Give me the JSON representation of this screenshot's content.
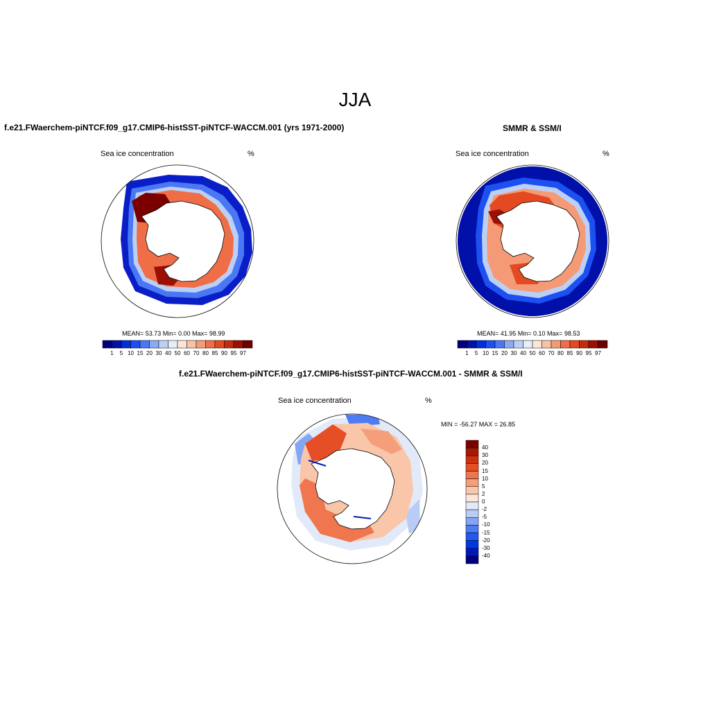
{
  "figure": {
    "season_title": "JJA"
  },
  "panels": {
    "model": {
      "title": "f.e21.FWaerchem-piNTCF.f09_g17.CMIP6-histSST-piNTCF-WACCM.001 (yrs 1971-2000)",
      "variable": "Sea ice concentration",
      "units": "%",
      "stats_text": "MEAN=  53.73  Min=   0.00  Max=  98.99"
    },
    "obs": {
      "title": "SMMR & SSM/I",
      "variable": "Sea ice concentration",
      "units": "%",
      "stats_text": "MEAN=  41.95  Min=   0.10  Max=  98.53"
    },
    "diff": {
      "title": "f.e21.FWaerchem-piNTCF.f09_g17.CMIP6-histSST-piNTCF-WACCM.001 - SMMR & SSM/I",
      "variable": "Sea ice concentration",
      "units": "%",
      "minmax_text": "MIN = -56.27 MAX =  26.85"
    }
  },
  "chart_data": [
    {
      "type": "heatmap",
      "projection": "south-polar stereographic",
      "title": "f.e21.FWaerchem-piNTCF.f09_g17.CMIP6-histSST-piNTCF-WACCM.001 (yrs 1971-2000)",
      "variable": "Sea ice concentration",
      "units": "%",
      "mean": 53.73,
      "min": 0.0,
      "max": 98.99,
      "colorbar_levels": [
        1,
        5,
        10,
        15,
        20,
        30,
        40,
        50,
        60,
        70,
        80,
        85,
        90,
        95,
        97
      ],
      "colorbar_orientation": "horizontal"
    },
    {
      "type": "heatmap",
      "projection": "south-polar stereographic",
      "title": "SMMR & SSM/I",
      "variable": "Sea ice concentration",
      "units": "%",
      "mean": 41.95,
      "min": 0.1,
      "max": 98.53,
      "colorbar_levels": [
        1,
        5,
        10,
        15,
        20,
        30,
        40,
        50,
        60,
        70,
        80,
        85,
        90,
        95,
        97
      ],
      "colorbar_orientation": "horizontal"
    },
    {
      "type": "heatmap",
      "projection": "south-polar stereographic",
      "title": "f.e21.FWaerchem-piNTCF.f09_g17.CMIP6-histSST-piNTCF-WACCM.001 - SMMR & SSM/I",
      "variable": "Sea ice concentration",
      "units": "%",
      "min": -56.27,
      "max": 26.85,
      "colorbar_levels": [
        40,
        30,
        20,
        15,
        10,
        5,
        2,
        0,
        -2,
        -5,
        -10,
        -15,
        -20,
        -30,
        -40
      ],
      "colorbar_orientation": "vertical"
    }
  ],
  "colors": {
    "conc_palette": [
      "#00007f",
      "#0010a8",
      "#0030d8",
      "#1c50f0",
      "#4a78f4",
      "#8aaaf4",
      "#bcd0f6",
      "#e6eefa",
      "#fde6d8",
      "#f9c2a6",
      "#f59a76",
      "#ef6e48",
      "#e44a22",
      "#c42a0c",
      "#9c1004",
      "#6e0000"
    ],
    "diff_palette": [
      "#00007f",
      "#0018b8",
      "#0038e0",
      "#2458f0",
      "#4e7cf4",
      "#84a4f4",
      "#b8ccf6",
      "#e2eafa",
      "#fde6d8",
      "#f9c6aa",
      "#f59e7a",
      "#ef764e",
      "#e64e26",
      "#cc300e",
      "#a81604",
      "#7a0000"
    ],
    "coastline": "#000000",
    "land": "#ffffff"
  }
}
